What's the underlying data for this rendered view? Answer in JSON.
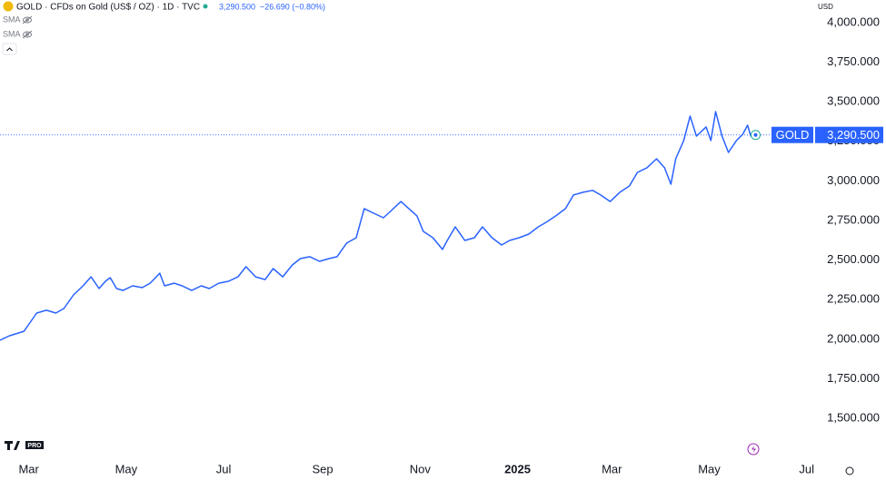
{
  "chart_data": {
    "type": "line",
    "title": "GOLD · CFDs on Gold (US$ / OZ) · 1D · TVC",
    "price": "3,290.500",
    "change": "−26.690 (−0.80%)",
    "indicators": [
      "SMA",
      "SMA"
    ],
    "currency": "USD",
    "logo_badge": "PRO",
    "xlim": [
      -18,
      490
    ],
    "xticks": [
      {
        "value": 0,
        "label": "Mar"
      },
      {
        "value": 61,
        "label": "May"
      },
      {
        "value": 122,
        "label": "Jul"
      },
      {
        "value": 184,
        "label": "Sep"
      },
      {
        "value": 245,
        "label": "Nov"
      },
      {
        "value": 306,
        "label": "2025"
      },
      {
        "value": 365,
        "label": "Mar"
      },
      {
        "value": 426,
        "label": "May"
      },
      {
        "value": 487,
        "label": "Jul"
      }
    ],
    "ylim": [
      1248,
      4143
    ],
    "yticks": [
      {
        "value": 1500,
        "label": "1,500.000"
      },
      {
        "value": 1750,
        "label": "1,750.000"
      },
      {
        "value": 2000,
        "label": "2,000.000"
      },
      {
        "value": 2250,
        "label": "2,250.000"
      },
      {
        "value": 2500,
        "label": "2,500.000"
      },
      {
        "value": 2750,
        "label": "2,750.000"
      },
      {
        "value": 3000,
        "label": "3,000.000"
      },
      {
        "value": 3250,
        "label": "3,250.000"
      },
      {
        "value": 3500,
        "label": "3,500.000"
      },
      {
        "value": 3750,
        "label": "3,750.000"
      },
      {
        "value": 4000,
        "label": "4,000.000"
      }
    ],
    "grid": false,
    "series": [
      {
        "name": "GOLD",
        "color": "#2962ff",
        "x": [
          -18,
          -12,
          -3,
          1,
          5,
          11,
          17,
          22,
          28,
          34,
          39,
          44,
          48,
          51,
          55,
          59,
          65,
          71,
          76,
          82,
          85,
          91,
          96,
          102,
          108,
          113,
          119,
          125,
          131,
          136,
          142,
          148,
          153,
          159,
          165,
          170,
          176,
          182,
          188,
          193,
          199,
          205,
          210,
          216,
          222,
          227,
          233,
          243,
          247,
          253,
          259,
          262,
          267,
          273,
          279,
          284,
          290,
          296,
          301,
          307,
          313,
          319,
          324,
          330,
          336,
          341,
          347,
          353,
          358,
          364,
          370,
          376,
          381,
          387,
          393,
          398,
          402,
          405,
          410,
          414,
          418,
          424,
          427,
          430,
          434,
          438,
          443,
          447,
          450,
          452,
          455
        ],
        "values": [
          1993,
          2022,
          2050,
          2108,
          2165,
          2183,
          2165,
          2194,
          2280,
          2337,
          2394,
          2320,
          2366,
          2389,
          2320,
          2308,
          2337,
          2326,
          2354,
          2417,
          2337,
          2354,
          2337,
          2308,
          2337,
          2320,
          2354,
          2366,
          2394,
          2458,
          2394,
          2377,
          2446,
          2394,
          2469,
          2509,
          2521,
          2492,
          2509,
          2521,
          2607,
          2641,
          2825,
          2796,
          2767,
          2813,
          2870,
          2779,
          2681,
          2641,
          2567,
          2624,
          2710,
          2624,
          2641,
          2710,
          2641,
          2595,
          2624,
          2641,
          2664,
          2710,
          2739,
          2779,
          2825,
          2911,
          2928,
          2940,
          2911,
          2870,
          2928,
          2968,
          3054,
          3083,
          3140,
          3083,
          2979,
          3140,
          3255,
          3409,
          3283,
          3341,
          3255,
          3438,
          3283,
          3180,
          3255,
          3295,
          3352,
          3283,
          3290.5
        ]
      }
    ]
  }
}
